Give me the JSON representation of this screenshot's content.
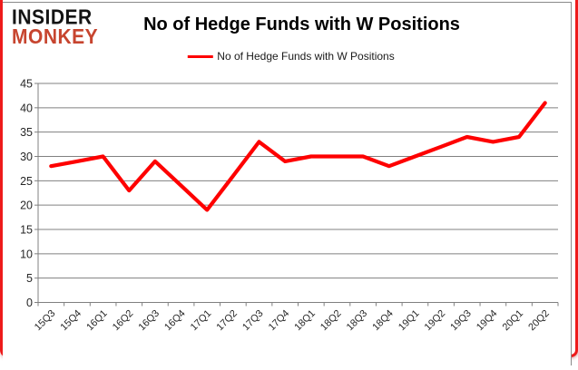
{
  "logo": {
    "line1": "INSIDER",
    "line2": "MONKEY"
  },
  "header": {
    "title": "No of Hedge Funds with W Positions"
  },
  "legend": {
    "label": "No of Hedge Funds with W Positions"
  },
  "chart_data": {
    "type": "line",
    "title": "No of Hedge Funds with W Positions",
    "xlabel": "",
    "ylabel": "",
    "categories": [
      "15Q3",
      "15Q4",
      "16Q1",
      "16Q2",
      "16Q3",
      "16Q4",
      "17Q1",
      "17Q2",
      "17Q3",
      "17Q4",
      "18Q1",
      "18Q2",
      "18Q3",
      "18Q4",
      "19Q1",
      "19Q2",
      "19Q3",
      "19Q4",
      "20Q1",
      "20Q2"
    ],
    "series": [
      {
        "name": "No of Hedge Funds with W Positions",
        "values": [
          28,
          29,
          30,
          23,
          29,
          24,
          19,
          26,
          33,
          29,
          30,
          30,
          30,
          28,
          30,
          32,
          34,
          33,
          34,
          41
        ]
      }
    ],
    "ylim": [
      0,
      45
    ],
    "ytick_step": 5,
    "grid": "horizontal",
    "legend_position": "top-center"
  },
  "colors": {
    "series_line": "#fe0000",
    "gridline": "#808080",
    "axis_text": "#262626",
    "page_border": "#ee1b1b",
    "chart_border": "#8a8a8a",
    "logo_black": "#141414",
    "logo_red": "#c7452f"
  }
}
